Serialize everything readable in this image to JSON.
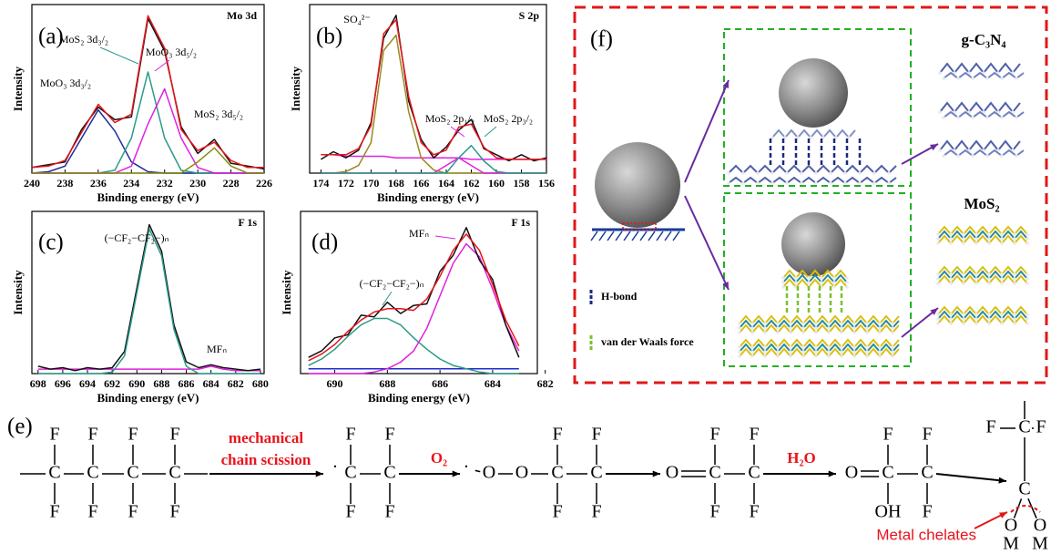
{
  "chart_data": [
    {
      "type": "line",
      "label": "(a)",
      "title": "Mo 3d",
      "xlabel": "Binding energy (eV)",
      "ylabel": "Intensity",
      "x": [
        240,
        239,
        238,
        237,
        236,
        235,
        234,
        233,
        232,
        231,
        230,
        229,
        228,
        227,
        226
      ],
      "xlim": [
        240,
        226
      ],
      "ylim": [
        0,
        120
      ],
      "xticks": [
        240,
        238,
        236,
        234,
        232,
        230,
        228,
        226
      ],
      "series": [
        {
          "color": "#1f2a9c",
          "values": [
            0,
            1,
            5,
            25,
            45,
            30,
            8,
            1,
            0,
            0,
            0,
            0,
            0,
            0,
            0
          ]
        },
        {
          "color": "#2a9a8a",
          "values": [
            0,
            0,
            0,
            0,
            0,
            2,
            25,
            72,
            25,
            2,
            0,
            0,
            0,
            0,
            0
          ]
        },
        {
          "color": "#e020e0",
          "values": [
            0,
            0,
            0,
            0,
            0,
            0,
            5,
            35,
            60,
            25,
            4,
            0,
            0,
            0,
            0
          ]
        },
        {
          "color": "#8a8a10",
          "values": [
            0,
            0,
            0,
            0,
            0,
            0,
            0,
            0,
            0,
            0,
            8,
            18,
            5,
            0,
            0
          ]
        },
        {
          "color": "#111111",
          "values": [
            4,
            6,
            8,
            31,
            47,
            38,
            40,
            110,
            87,
            33,
            14,
            24,
            7,
            5,
            3
          ]
        },
        {
          "color": "#e8141c",
          "values": [
            4,
            5,
            9,
            29,
            49,
            36,
            42,
            112,
            89,
            31,
            16,
            22,
            9,
            4,
            4
          ]
        }
      ],
      "annotations": [
        "MoO₃ 3d₃/₂",
        "MoS₂ 3d₃/₂",
        "MoO₃ 3d₅/₂",
        "MoS₂ 3d₅/₂"
      ]
    },
    {
      "type": "line",
      "label": "(b)",
      "title": "S 2p",
      "xlabel": "Binding energy (eV)",
      "ylabel": "Intensity",
      "x": [
        174,
        173,
        172,
        171,
        170,
        169,
        168,
        167,
        166,
        165,
        164,
        163,
        162,
        161,
        160,
        159,
        158,
        157,
        156
      ],
      "xlim": [
        174.9,
        156
      ],
      "ylim": [
        0,
        110
      ],
      "xticks": [
        174,
        172,
        170,
        168,
        166,
        164,
        162,
        160,
        158,
        156
      ],
      "series": [
        {
          "color": "#e020e0",
          "values": [
            12,
            12,
            11,
            11,
            11,
            11,
            10,
            10,
            10,
            10,
            10,
            10,
            9,
            9,
            9,
            9,
            9,
            9,
            9
          ]
        },
        {
          "color": "#9a8a20",
          "values": [
            0,
            0,
            1,
            5,
            20,
            80,
            90,
            40,
            10,
            2,
            0,
            0,
            0,
            0,
            0,
            0,
            0,
            0,
            0
          ]
        },
        {
          "color": "#e020e0",
          "values": [
            0,
            0,
            0,
            0,
            0,
            0,
            0,
            0,
            0,
            0,
            5,
            10,
            5,
            0,
            0,
            0,
            0,
            0,
            0
          ]
        },
        {
          "color": "#2a9a8a",
          "values": [
            0,
            0,
            0,
            0,
            0,
            0,
            0,
            0,
            0,
            0,
            0,
            10,
            18,
            8,
            1,
            0,
            0,
            0,
            0
          ]
        },
        {
          "color": "#111111",
          "values": [
            9,
            14,
            10,
            15,
            33,
            88,
            103,
            47,
            22,
            10,
            17,
            28,
            35,
            16,
            12,
            8,
            12,
            8,
            10
          ]
        },
        {
          "color": "#e8141c",
          "values": [
            12,
            12,
            12,
            16,
            31,
            91,
            100,
            50,
            20,
            12,
            15,
            30,
            32,
            17,
            10,
            9,
            9,
            9,
            9
          ]
        }
      ],
      "annotations": [
        "SO₄²⁻",
        "MoS₂ 2p₁/₂",
        "MoS₂ 2p₃/₂"
      ]
    },
    {
      "type": "line",
      "label": "(c)",
      "title": "F 1s",
      "xlabel": "Binding energy (eV)",
      "ylabel": "Intensity",
      "x": [
        698,
        697,
        696,
        695,
        694,
        693,
        692,
        691,
        690,
        689,
        688,
        687,
        686,
        685,
        684,
        683,
        682,
        681,
        680
      ],
      "xlim": [
        698.5,
        679.7
      ],
      "ylim": [
        0,
        110
      ],
      "xticks": [
        698,
        696,
        694,
        692,
        690,
        688,
        686,
        684,
        682,
        680
      ],
      "series": [
        {
          "color": "#e020e0",
          "values": [
            3,
            3,
            3,
            3,
            3,
            3,
            3,
            3,
            3,
            3,
            3,
            3,
            3,
            3,
            5,
            3,
            2,
            2,
            2
          ]
        },
        {
          "color": "#111111",
          "values": [
            5,
            3,
            4,
            2,
            4,
            3,
            4,
            15,
            58,
            101,
            83,
            33,
            8,
            4,
            6,
            4,
            3,
            2,
            3
          ]
        },
        {
          "color": "#2a9a8a",
          "values": [
            0,
            0,
            0,
            0,
            0,
            0,
            1,
            12,
            55,
            98,
            80,
            30,
            5,
            0,
            0,
            0,
            0,
            0,
            0
          ]
        }
      ],
      "annotations": [
        "(−CF₂−CF₂−)ₙ",
        "MFₙ"
      ]
    },
    {
      "type": "line",
      "label": "(d)",
      "title": "F 1s",
      "xlabel": "Binding energy (eV)",
      "ylabel": "Intensity",
      "x": [
        691,
        690.5,
        690,
        689.5,
        689,
        688.5,
        688,
        687.5,
        687,
        686.5,
        686,
        685.5,
        685,
        684.5,
        684,
        683.5,
        683
      ],
      "xlim": [
        691.3,
        682.3
      ],
      "ylim": [
        0,
        100
      ],
      "xticks": [
        690,
        688,
        686,
        684,
        682
      ],
      "series": [
        {
          "color": "#1f2acc",
          "values": [
            3,
            3,
            3,
            3,
            3,
            3,
            3,
            3,
            3,
            3,
            3,
            3,
            3,
            3,
            3,
            3,
            3
          ]
        },
        {
          "color": "#2a9a8a",
          "values": [
            5,
            9,
            15,
            23,
            30,
            34,
            34,
            30,
            22,
            15,
            9,
            5,
            3,
            1,
            0,
            0,
            0
          ]
        },
        {
          "color": "#e020e0",
          "values": [
            0,
            0,
            0,
            0,
            0,
            1,
            3,
            7,
            14,
            28,
            48,
            68,
            80,
            72,
            52,
            30,
            14
          ]
        },
        {
          "color": "#111111",
          "values": [
            10,
            14,
            22,
            24,
            36,
            35,
            44,
            37,
            42,
            43,
            63,
            73,
            90,
            70,
            58,
            30,
            10
          ]
        },
        {
          "color": "#e8141c",
          "values": [
            8,
            12,
            18,
            26,
            33,
            38,
            40,
            40,
            39,
            46,
            60,
            76,
            86,
            76,
            55,
            33,
            17
          ]
        }
      ],
      "annotations": [
        "MFₙ",
        "(−CF₂−CF₂−)ₙ"
      ]
    }
  ],
  "panel_f": {
    "label": "(f)",
    "materials": [
      "g-C₃N₄",
      "MoS₂"
    ],
    "legend": [
      "H-bond",
      "van der Waals force"
    ]
  },
  "panel_e": {
    "label": "(e)",
    "reagents": [
      "mechanical",
      "chain scission",
      "O₂",
      "H₂O"
    ],
    "note": "Metal chelates",
    "atoms": [
      "C",
      "C",
      "C",
      "C",
      "F",
      "F",
      "F",
      "F",
      "F",
      "F",
      "F",
      "F",
      "·",
      "C",
      "C",
      "F",
      "F",
      "F",
      "F",
      "·",
      "O",
      "O",
      "C",
      "C",
      "F",
      "F",
      "F",
      "F",
      "O",
      "C",
      "C",
      "F",
      "F",
      "F",
      "F",
      "O",
      "C",
      "C",
      "F",
      "F",
      "OH",
      "F",
      "F",
      "C",
      "F",
      "C",
      "O",
      "O",
      "M",
      "M"
    ]
  }
}
